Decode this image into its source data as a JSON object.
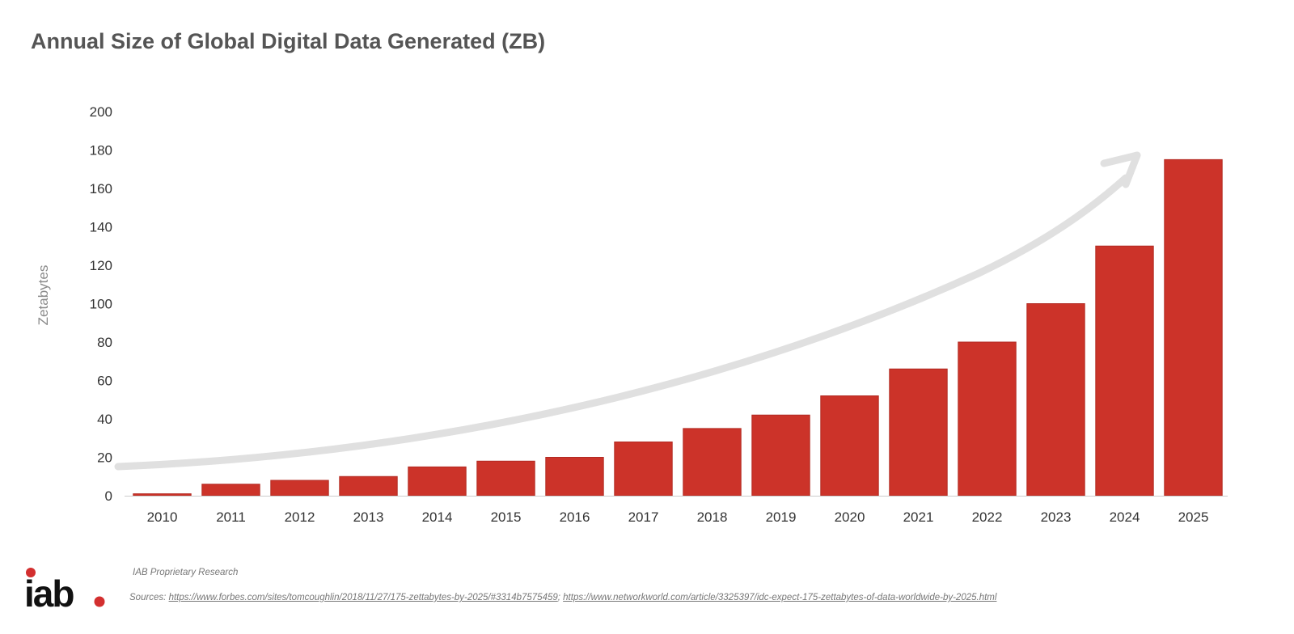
{
  "chart_data": {
    "type": "bar",
    "title": "Annual Size of Global Digital Data Generated (ZB)",
    "ylabel": "Zetabytes",
    "xlabel": "",
    "ylim": [
      0,
      200
    ],
    "yticks": [
      "0",
      "20",
      "40",
      "60",
      "80",
      "100",
      "120",
      "140",
      "160",
      "180",
      "200"
    ],
    "categories": [
      "2010",
      "2011",
      "2012",
      "2013",
      "2014",
      "2015",
      "2016",
      "2017",
      "2018",
      "2019",
      "2020",
      "2021",
      "2022",
      "2023",
      "2024",
      "2025"
    ],
    "values": [
      1,
      6,
      8,
      10,
      15,
      18,
      20,
      28,
      35,
      42,
      52,
      66,
      80,
      100,
      130,
      175
    ],
    "bar_color": "#CC3329",
    "trend_arrow_color": "#E0E0E0",
    "grid": false,
    "legend": "none"
  },
  "footer": {
    "logo_text": "iab",
    "research_note": "IAB Proprietary Research",
    "sources_prefix": "Sources: ",
    "source_link_1": "https://www.forbes.com/sites/tomcoughlin/2018/11/27/175-zettabytes-by-2025/#3314b7575459",
    "sources_separator": "; ",
    "source_link_2": "https://www.networkworld.com/article/3325397/idc-expect-175-zettabytes-of-data-worldwide-by-2025.html",
    "logo_dot_color": "#D32F2F"
  }
}
